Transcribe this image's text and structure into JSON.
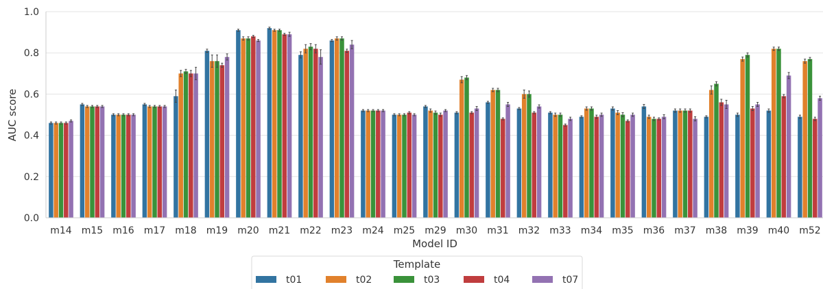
{
  "chart_data": {
    "type": "bar",
    "xlabel": "Model ID",
    "ylabel": "AUC score",
    "ylim": [
      0.0,
      1.0
    ],
    "yticks": [
      "0.0",
      "0.2",
      "0.4",
      "0.6",
      "0.8",
      "1.0"
    ],
    "grid": "horizontal",
    "legend": {
      "title": "Template",
      "placement": "bottom-center"
    },
    "categories": [
      "m14",
      "m15",
      "m16",
      "m17",
      "m18",
      "m19",
      "m20",
      "m21",
      "m22",
      "m23",
      "m24",
      "m25",
      "m29",
      "m30",
      "m31",
      "m32",
      "m33",
      "m34",
      "m35",
      "m36",
      "m37",
      "m38",
      "m39",
      "m40",
      "m52"
    ],
    "series": [
      {
        "name": "t01",
        "color": "#3274a1",
        "values": [
          0.46,
          0.55,
          0.5,
          0.55,
          0.59,
          0.81,
          0.91,
          0.92,
          0.79,
          0.86,
          0.52,
          0.5,
          0.54,
          0.51,
          0.56,
          0.53,
          0.51,
          0.49,
          0.53,
          0.54,
          0.52,
          0.49,
          0.5,
          0.52,
          0.49
        ],
        "errors": [
          0.005,
          0.005,
          0.005,
          0.005,
          0.03,
          0.008,
          0.005,
          0.005,
          0.015,
          0.005,
          0.005,
          0.005,
          0.005,
          0.005,
          0.005,
          0.005,
          0.005,
          0.005,
          0.008,
          0.01,
          0.008,
          0.005,
          0.008,
          0.008,
          0.008
        ]
      },
      {
        "name": "t02",
        "color": "#e1812c",
        "values": [
          0.46,
          0.54,
          0.5,
          0.54,
          0.7,
          0.76,
          0.87,
          0.91,
          0.82,
          0.87,
          0.52,
          0.5,
          0.52,
          0.67,
          0.62,
          0.6,
          0.5,
          0.53,
          0.51,
          0.49,
          0.52,
          0.62,
          0.77,
          0.82,
          0.76
        ],
        "errors": [
          0.005,
          0.005,
          0.005,
          0.005,
          0.015,
          0.03,
          0.008,
          0.005,
          0.02,
          0.008,
          0.005,
          0.005,
          0.008,
          0.015,
          0.008,
          0.02,
          0.008,
          0.008,
          0.01,
          0.008,
          0.008,
          0.02,
          0.01,
          0.008,
          0.01
        ]
      },
      {
        "name": "t03",
        "color": "#3a923a",
        "values": [
          0.46,
          0.54,
          0.5,
          0.54,
          0.71,
          0.76,
          0.87,
          0.91,
          0.83,
          0.87,
          0.52,
          0.5,
          0.51,
          0.68,
          0.62,
          0.6,
          0.5,
          0.53,
          0.5,
          0.48,
          0.52,
          0.65,
          0.79,
          0.82,
          0.77
        ],
        "errors": [
          0.005,
          0.005,
          0.005,
          0.005,
          0.01,
          0.03,
          0.008,
          0.005,
          0.015,
          0.008,
          0.005,
          0.005,
          0.008,
          0.01,
          0.008,
          0.015,
          0.008,
          0.008,
          0.01,
          0.008,
          0.008,
          0.01,
          0.01,
          0.008,
          0.008
        ]
      },
      {
        "name": "t04",
        "color": "#c03d3e",
        "values": [
          0.46,
          0.54,
          0.5,
          0.54,
          0.7,
          0.74,
          0.88,
          0.89,
          0.82,
          0.81,
          0.52,
          0.51,
          0.5,
          0.51,
          0.48,
          0.51,
          0.45,
          0.49,
          0.47,
          0.48,
          0.52,
          0.56,
          0.53,
          0.59,
          0.48
        ],
        "errors": [
          0.005,
          0.005,
          0.005,
          0.005,
          0.015,
          0.01,
          0.005,
          0.005,
          0.02,
          0.008,
          0.005,
          0.005,
          0.008,
          0.005,
          0.005,
          0.005,
          0.005,
          0.008,
          0.005,
          0.005,
          0.008,
          0.015,
          0.01,
          0.008,
          0.008
        ]
      },
      {
        "name": "t07",
        "color": "#9372b2",
        "values": [
          0.47,
          0.54,
          0.5,
          0.54,
          0.7,
          0.78,
          0.86,
          0.89,
          0.78,
          0.84,
          0.52,
          0.5,
          0.52,
          0.53,
          0.55,
          0.54,
          0.48,
          0.5,
          0.5,
          0.49,
          0.48,
          0.55,
          0.55,
          0.69,
          0.58
        ],
        "errors": [
          0.005,
          0.005,
          0.005,
          0.005,
          0.03,
          0.015,
          0.005,
          0.01,
          0.035,
          0.02,
          0.005,
          0.005,
          0.005,
          0.01,
          0.01,
          0.008,
          0.008,
          0.008,
          0.008,
          0.01,
          0.01,
          0.02,
          0.01,
          0.015,
          0.01
        ]
      }
    ]
  }
}
